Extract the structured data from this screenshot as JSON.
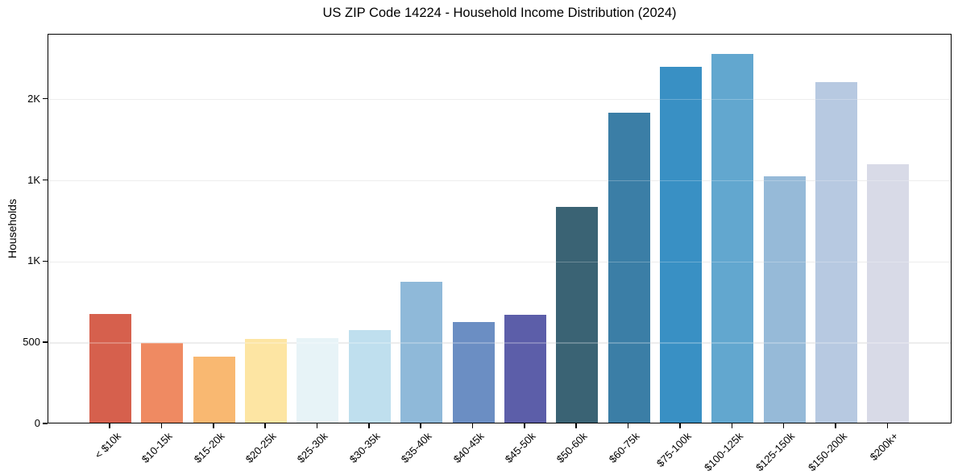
{
  "chart_data": {
    "type": "bar",
    "title": "US ZIP Code 14224 - Household Income Distribution (2024)",
    "xlabel": "",
    "ylabel": "Households",
    "categories": [
      "< $10k",
      "$10-15k",
      "$15-20k",
      "$20-25k",
      "$25-30k",
      "$30-35k",
      "$35-40k",
      "$40-45k",
      "$45-50k",
      "$50-60k",
      "$60-75k",
      "$75-100k",
      "$100-125k",
      "$125-150k",
      "$150-200k",
      "$200k+"
    ],
    "values": [
      670,
      490,
      405,
      515,
      520,
      570,
      870,
      620,
      665,
      1330,
      1910,
      2190,
      2270,
      1515,
      2100,
      1590
    ],
    "bar_colors": [
      "#d6604d",
      "#ef8a62",
      "#f9b871",
      "#fde5a3",
      "#e7f3f7",
      "#bfdfee",
      "#8fb9d9",
      "#6b8ec3",
      "#5c5ea9",
      "#3a6374",
      "#3b7ea6",
      "#3990c4",
      "#62a7cf",
      "#96bad8",
      "#b7c9e1",
      "#d8dae7"
    ],
    "ylim": [
      0,
      2400
    ],
    "yticks": [
      {
        "value": 0,
        "label": "0"
      },
      {
        "value": 500,
        "label": "500"
      },
      {
        "value": 1000,
        "label": "1K"
      },
      {
        "value": 1500,
        "label": "1K"
      },
      {
        "value": 2000,
        "label": "2K"
      }
    ],
    "grid": "horizontal-y",
    "grid_color": "#e7e7e7",
    "background_color": "#ffffff",
    "text_color": "#000000",
    "legend": "none",
    "x_tick_rotation_deg": 45
  }
}
